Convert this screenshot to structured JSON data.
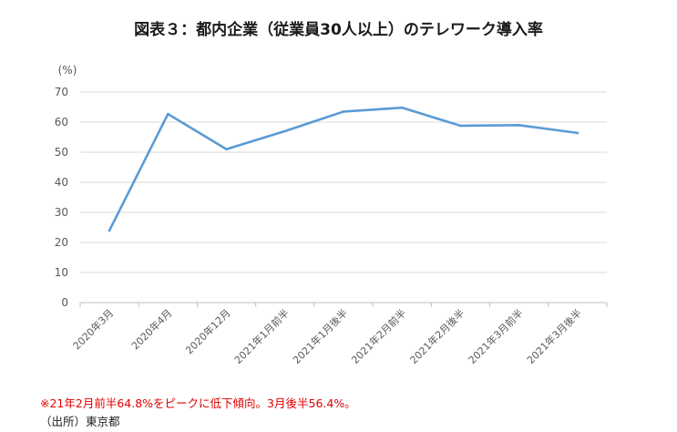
{
  "chart_data": {
    "type": "line",
    "title": "図表３：都内企業（従業員30人以上）のテレワーク導入率",
    "ylabel": "(%)",
    "xlabel": "",
    "ylim": [
      0,
      70
    ],
    "yticks": [
      0,
      10,
      20,
      30,
      40,
      50,
      60,
      70
    ],
    "grid": true,
    "legend": "none",
    "categories": [
      "2020年3月",
      "2020年4月",
      "2020年12月",
      "2021年1月前半",
      "2021年1月後半",
      "2021年2月前半",
      "2021年2月後半",
      "2021年3月前半",
      "2021年3月後半"
    ],
    "series": [
      {
        "values": [
          24.0,
          62.7,
          51.0,
          57.0,
          63.5,
          64.8,
          58.8,
          59.0,
          56.4
        ],
        "color": "#5b9bd5"
      }
    ]
  },
  "footnote": "※21年2月前半64.8%をピークに低下傾向。3月後半56.4%。",
  "source": "（出所）東京都"
}
